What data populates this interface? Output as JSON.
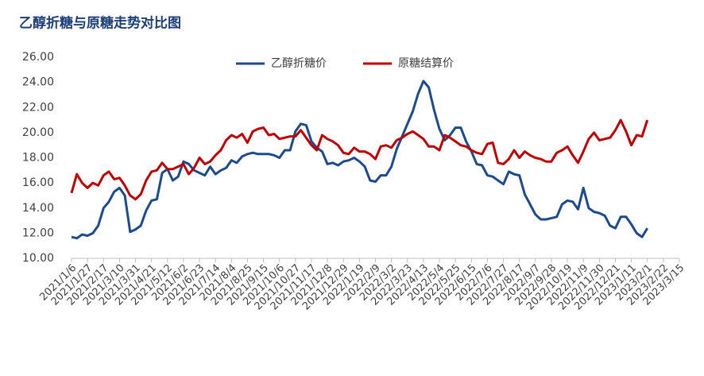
{
  "chart_data": {
    "type": "line",
    "title": "乙醇折糖与原糖走势对比图",
    "categories": [
      "2021/1/6",
      null,
      null,
      "2021/1/27",
      null,
      null,
      "2021/2/17",
      null,
      null,
      "2021/3/10",
      null,
      null,
      "2021/3/31",
      null,
      null,
      "2021/4/21",
      null,
      null,
      "2021/5/12",
      null,
      null,
      "2021/6/2",
      null,
      null,
      "2021/6/23",
      null,
      null,
      "2021/7/14",
      null,
      null,
      "2021/8/4",
      null,
      null,
      "2021/8/25",
      null,
      null,
      "2021/9/15",
      null,
      null,
      "2021/10/6",
      null,
      null,
      "2021/10/27",
      null,
      null,
      "2021/11/17",
      null,
      null,
      "2021/12/8",
      null,
      null,
      "2021/12/29",
      null,
      null,
      "2022/1/19",
      null,
      null,
      "2022/2/9",
      null,
      null,
      "2022/3/2",
      null,
      null,
      "2022/3/23",
      null,
      null,
      "2022/4/13",
      null,
      null,
      "2022/5/4",
      null,
      null,
      "2022/5/25",
      null,
      null,
      "2022/6/15",
      null,
      null,
      "2022/7/6",
      null,
      null,
      "2022/7/27",
      null,
      null,
      "2022/8/17",
      null,
      null,
      "2022/9/7",
      null,
      null,
      "2022/9/28",
      null,
      null,
      "2022/10/19",
      null,
      null,
      "2022/11/9",
      null,
      null,
      "2022/11/30",
      null,
      null,
      "2022/12/21",
      null,
      null,
      "2023/1/11",
      null,
      null,
      "2023/2/1",
      null,
      null,
      "2023/2/22",
      null,
      null,
      "2023/3/15"
    ],
    "series": [
      {
        "name": "乙醇折糖价",
        "color": "#1c4a8f",
        "values": [
          11.7,
          11.6,
          11.9,
          11.8,
          12.0,
          12.6,
          14.0,
          14.5,
          15.3,
          15.6,
          15.0,
          12.1,
          12.3,
          12.6,
          13.8,
          14.6,
          14.7,
          16.8,
          17.1,
          16.2,
          16.5,
          17.7,
          17.5,
          17.0,
          16.8,
          16.6,
          17.3,
          16.7,
          17.0,
          17.2,
          17.8,
          17.6,
          18.1,
          18.3,
          18.4,
          18.3,
          18.3,
          18.3,
          18.2,
          18.0,
          18.6,
          18.6,
          20.1,
          20.7,
          20.6,
          19.3,
          18.8,
          18.5,
          17.5,
          17.6,
          17.4,
          17.7,
          17.8,
          18.0,
          17.7,
          17.3,
          16.2,
          16.1,
          16.6,
          16.6,
          17.3,
          18.7,
          19.7,
          20.7,
          21.7,
          23.1,
          24.1,
          23.6,
          21.8,
          20.3,
          19.4,
          19.8,
          20.4,
          20.4,
          19.3,
          18.5,
          17.5,
          17.4,
          16.6,
          16.5,
          16.2,
          15.9,
          16.9,
          16.7,
          16.6,
          15.1,
          14.3,
          13.5,
          13.1,
          13.1,
          13.2,
          13.3,
          14.3,
          14.6,
          14.5,
          13.9,
          15.6,
          14.0,
          13.7,
          13.6,
          13.4,
          12.6,
          12.4,
          13.3,
          13.3,
          12.7,
          12.0,
          11.7,
          12.4,
          null,
          null,
          null,
          null,
          null,
          null
        ]
      },
      {
        "name": "原糖结算价",
        "color": "#c00000",
        "values": [
          15.2,
          16.7,
          16.0,
          15.6,
          16.0,
          15.8,
          16.6,
          16.9,
          16.3,
          16.4,
          15.8,
          15.0,
          14.7,
          15.1,
          16.2,
          16.9,
          17.0,
          17.6,
          17.1,
          17.1,
          17.3,
          17.5,
          16.7,
          17.2,
          18.0,
          17.5,
          17.7,
          18.2,
          18.6,
          19.4,
          19.8,
          19.6,
          19.9,
          19.2,
          20.1,
          20.3,
          20.4,
          19.8,
          19.9,
          19.5,
          19.6,
          19.7,
          19.7,
          20.2,
          19.6,
          19.0,
          18.6,
          19.8,
          19.5,
          19.3,
          19.0,
          18.4,
          18.3,
          18.8,
          18.5,
          18.5,
          18.3,
          17.9,
          18.9,
          19.0,
          18.8,
          19.4,
          19.6,
          19.9,
          20.1,
          19.8,
          19.5,
          18.9,
          18.9,
          18.6,
          19.8,
          19.6,
          19.3,
          19.0,
          18.9,
          18.6,
          18.4,
          18.3,
          19.1,
          19.2,
          17.6,
          17.5,
          17.9,
          18.6,
          18.0,
          18.5,
          18.2,
          18.0,
          17.9,
          17.7,
          17.7,
          18.4,
          18.6,
          18.9,
          18.2,
          17.6,
          18.5,
          19.5,
          20.0,
          19.4,
          19.5,
          19.6,
          20.2,
          21.0,
          20.1,
          19.0,
          19.8,
          19.7,
          21.0,
          null,
          null,
          null,
          null,
          null,
          null
        ]
      }
    ],
    "ylim": [
      10,
      26
    ],
    "yticks": [
      {
        "value": 10,
        "label": "10.00"
      },
      {
        "value": 12,
        "label": "12.00"
      },
      {
        "value": 14,
        "label": "14.00"
      },
      {
        "value": 16,
        "label": "16.00"
      },
      {
        "value": 18,
        "label": "18.00"
      },
      {
        "value": 20,
        "label": "20.00"
      },
      {
        "value": 22,
        "label": "22.00"
      },
      {
        "value": 24,
        "label": "24.00"
      },
      {
        "value": 26,
        "label": "26.00"
      }
    ],
    "grid": false,
    "legend": "top"
  }
}
